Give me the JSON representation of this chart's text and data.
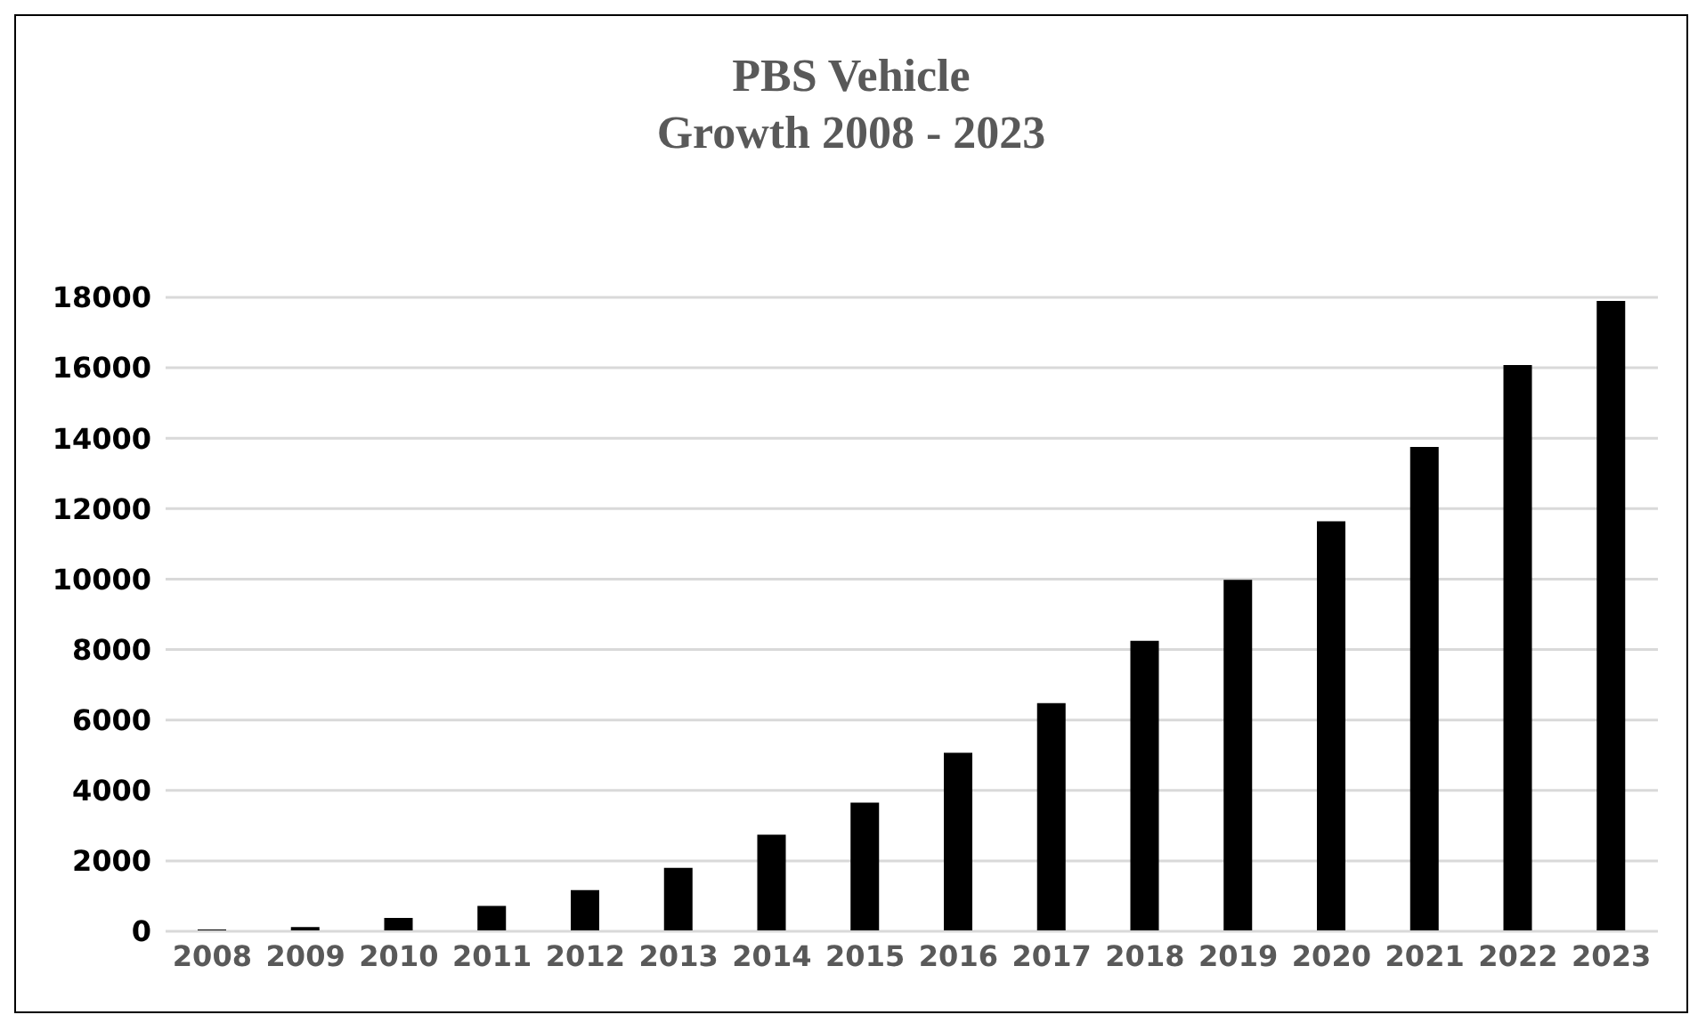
{
  "chart_data": {
    "type": "bar",
    "title": "PBS Vehicle\nGrowth 2008 - 2023",
    "categories": [
      "2008",
      "2009",
      "2010",
      "2011",
      "2012",
      "2013",
      "2014",
      "2015",
      "2016",
      "2017",
      "2018",
      "2019",
      "2020",
      "2021",
      "2022",
      "2023"
    ],
    "values": [
      50,
      120,
      380,
      720,
      1170,
      1800,
      2740,
      3650,
      5070,
      6480,
      8250,
      9980,
      11640,
      13750,
      16080,
      17900
    ],
    "color": "#000000",
    "ylim": [
      0,
      18000
    ],
    "yticks": [
      0,
      2000,
      4000,
      6000,
      8000,
      10000,
      12000,
      14000,
      16000,
      18000
    ],
    "grid": "y",
    "legend": false
  }
}
